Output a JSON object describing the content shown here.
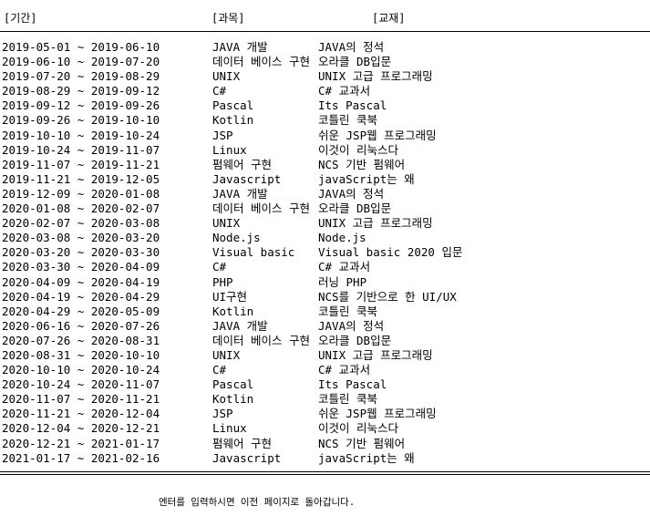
{
  "header": {
    "period": "[기간]",
    "subject": "[과목]",
    "textbook": "[교재]"
  },
  "rows": [
    {
      "period": "2019-05-01 ~ 2019-06-10",
      "subject": "JAVA 개발",
      "textbook": "JAVA의 정석"
    },
    {
      "period": "2019-06-10 ~ 2019-07-20",
      "subject": "데이터 베이스 구현",
      "textbook": "오라클 DB입문"
    },
    {
      "period": "2019-07-20 ~ 2019-08-29",
      "subject": "UNIX",
      "textbook": "UNIX 고급 프로그래밍"
    },
    {
      "period": "2019-08-29 ~ 2019-09-12",
      "subject": "C#",
      "textbook": "C# 교과서"
    },
    {
      "period": "2019-09-12 ~ 2019-09-26",
      "subject": "Pascal",
      "textbook": "Its Pascal"
    },
    {
      "period": "2019-09-26 ~ 2019-10-10",
      "subject": "Kotlin",
      "textbook": "코틀린 쿡북"
    },
    {
      "period": "2019-10-10 ~ 2019-10-24",
      "subject": "JSP",
      "textbook": "쉬운 JSP웹 프로그래밍"
    },
    {
      "period": "2019-10-24 ~ 2019-11-07",
      "subject": "Linux",
      "textbook": "이것이 리눅스다"
    },
    {
      "period": "2019-11-07 ~ 2019-11-21",
      "subject": "펌웨어 구현",
      "textbook": "NCS 기반 펌웨어"
    },
    {
      "period": "2019-11-21 ~ 2019-12-05",
      "subject": "Javascript",
      "textbook": "javaScript는 왜"
    },
    {
      "period": "2019-12-09 ~ 2020-01-08",
      "subject": "JAVA 개발",
      "textbook": "JAVA의 정석"
    },
    {
      "period": "2020-01-08 ~ 2020-02-07",
      "subject": "데이터 베이스 구현",
      "textbook": "오라클 DB입문"
    },
    {
      "period": "2020-02-07 ~ 2020-03-08",
      "subject": "UNIX",
      "textbook": "UNIX 고급 프로그래밍"
    },
    {
      "period": "2020-03-08 ~ 2020-03-20",
      "subject": "Node.js",
      "textbook": "Node.js"
    },
    {
      "period": "2020-03-20 ~ 2020-03-30",
      "subject": "Visual basic",
      "textbook": "Visual basic 2020 입문"
    },
    {
      "period": "2020-03-30 ~ 2020-04-09",
      "subject": "C#",
      "textbook": "C# 교과서"
    },
    {
      "period": "2020-04-09 ~ 2020-04-19",
      "subject": "PHP",
      "textbook": "러닝 PHP"
    },
    {
      "period": "2020-04-19 ~ 2020-04-29",
      "subject": "UI구현",
      "textbook": "NCS를 기반으로 한 UI/UX"
    },
    {
      "period": "2020-04-29 ~ 2020-05-09",
      "subject": "Kotlin",
      "textbook": "코틀린 쿡북"
    },
    {
      "period": "2020-06-16 ~ 2020-07-26",
      "subject": "JAVA 개발",
      "textbook": "JAVA의 정석"
    },
    {
      "period": "2020-07-26 ~ 2020-08-31",
      "subject": "데이터 베이스 구현",
      "textbook": "오라클 DB입문"
    },
    {
      "period": "2020-08-31 ~ 2020-10-10",
      "subject": "UNIX",
      "textbook": "UNIX 고급 프로그래밍"
    },
    {
      "period": "2020-10-10 ~ 2020-10-24",
      "subject": "C#",
      "textbook": "C# 교과서"
    },
    {
      "period": "2020-10-24 ~ 2020-11-07",
      "subject": "Pascal",
      "textbook": "Its Pascal"
    },
    {
      "period": "2020-11-07 ~ 2020-11-21",
      "subject": "Kotlin",
      "textbook": "코틀린 쿡북"
    },
    {
      "period": "2020-11-21 ~ 2020-12-04",
      "subject": "JSP",
      "textbook": "쉬운 JSP웹 프로그래밍"
    },
    {
      "period": "2020-12-04 ~ 2020-12-21",
      "subject": "Linux",
      "textbook": "이것이 리눅스다"
    },
    {
      "period": "2020-12-21 ~ 2021-01-17",
      "subject": "펌웨어 구현",
      "textbook": "NCS 기반 펌웨어"
    },
    {
      "period": "2021-01-17 ~ 2021-02-16",
      "subject": "Javascript",
      "textbook": "javaScript는 왜"
    }
  ],
  "footer": {
    "prompt": "엔터를 입력하시면 이전 페이지로 돌아갑니다."
  }
}
